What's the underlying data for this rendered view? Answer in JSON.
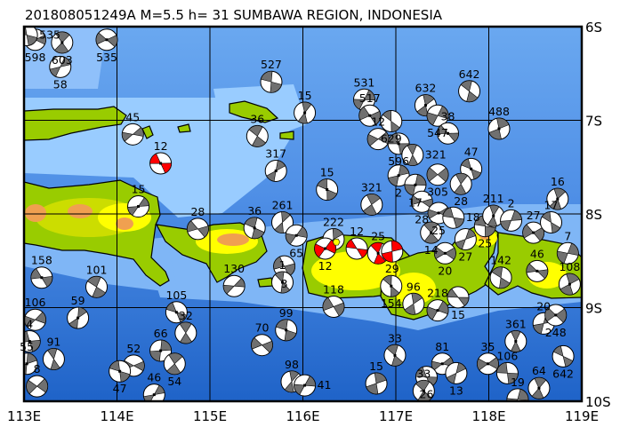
{
  "title": "201808051249A M=5.5 h= 31 SUMBAWA REGION, INDONESIA",
  "map": {
    "lon_range": [
      113,
      119
    ],
    "lat_range": [
      -10,
      -6
    ],
    "grid": true,
    "lon_ticks": [
      {
        "value": 113,
        "label": "113E"
      },
      {
        "value": 114,
        "label": "114E"
      },
      {
        "value": 115,
        "label": "115E"
      },
      {
        "value": 116,
        "label": "116E"
      },
      {
        "value": 117,
        "label": "117E"
      },
      {
        "value": 118,
        "label": "118E"
      },
      {
        "value": 119,
        "label": "119E"
      }
    ],
    "lat_ticks": [
      {
        "value": -6,
        "label": "6S"
      },
      {
        "value": -7,
        "label": "7S"
      },
      {
        "value": -8,
        "label": "8S"
      },
      {
        "value": -9,
        "label": "9S"
      },
      {
        "value": -10,
        "label": "10S"
      }
    ],
    "colors": {
      "deep_sea": "#1f63c8",
      "mid_sea": "#4f8fe6",
      "shelf": "#99ccff",
      "lowland": "#99cc00",
      "upland": "#ffff00",
      "highland": "#f0a050",
      "mechanism_fill": "#707070",
      "target_mechanism_fill": "#ff0000",
      "epicenter": "#ffff00"
    },
    "epicenter": {
      "lon": 116.36,
      "lat": -8.3
    }
  },
  "events": [
    {
      "label": "598",
      "lon": 113.12,
      "lat": -6.14,
      "highlight": false
    },
    {
      "label": "535",
      "lon": 113.03,
      "lat": -6.09,
      "highlight": false
    },
    {
      "label": "603",
      "lon": 113.41,
      "lat": -6.17,
      "highlight": false
    },
    {
      "label": "58",
      "lon": 113.39,
      "lat": -6.43,
      "highlight": false
    },
    {
      "label": "535",
      "lon": 113.89,
      "lat": -6.14,
      "highlight": false
    },
    {
      "label": "527",
      "lon": 115.66,
      "lat": -6.59,
      "highlight": false
    },
    {
      "label": "15",
      "lon": 116.02,
      "lat": -6.92,
      "highlight": false
    },
    {
      "label": "531",
      "lon": 116.66,
      "lat": -6.78,
      "highlight": false
    },
    {
      "label": "517",
      "lon": 116.72,
      "lat": -6.95,
      "highlight": false
    },
    {
      "label": "629",
      "lon": 116.95,
      "lat": -7.01,
      "highlight": false
    },
    {
      "label": "632",
      "lon": 117.32,
      "lat": -6.84,
      "highlight": false
    },
    {
      "label": "547",
      "lon": 117.45,
      "lat": -6.95,
      "highlight": false
    },
    {
      "label": "38",
      "lon": 117.56,
      "lat": -7.14,
      "highlight": false
    },
    {
      "label": "642",
      "lon": 117.79,
      "lat": -6.69,
      "highlight": false
    },
    {
      "label": "488",
      "lon": 118.11,
      "lat": -7.09,
      "highlight": false
    },
    {
      "label": "45",
      "lon": 114.17,
      "lat": -7.15,
      "highlight": false
    },
    {
      "label": "12",
      "lon": 114.47,
      "lat": -7.46,
      "highlight": true
    },
    {
      "label": "36",
      "lon": 115.51,
      "lat": -7.17,
      "highlight": false
    },
    {
      "label": "317",
      "lon": 115.71,
      "lat": -7.54,
      "highlight": false
    },
    {
      "label": "12",
      "lon": 116.81,
      "lat": -7.2,
      "highlight": false
    },
    {
      "label": "596",
      "lon": 117.03,
      "lat": -7.25,
      "highlight": false
    },
    {
      "label": "321",
      "lon": 117.18,
      "lat": -7.37,
      "highlight": false
    },
    {
      "label": "2",
      "lon": 117.03,
      "lat": -7.59,
      "highlight": false
    },
    {
      "label": "305",
      "lon": 117.45,
      "lat": -7.58,
      "highlight": false
    },
    {
      "label": "47",
      "lon": 117.81,
      "lat": -7.52,
      "highlight": false
    },
    {
      "label": "28",
      "lon": 117.7,
      "lat": -7.68,
      "highlight": false
    },
    {
      "label": "17",
      "lon": 117.21,
      "lat": -7.69,
      "highlight": false
    },
    {
      "label": "28",
      "lon": 117.28,
      "lat": -7.87,
      "highlight": false
    },
    {
      "label": "15",
      "lon": 116.26,
      "lat": -7.74,
      "highlight": false
    },
    {
      "label": "321",
      "lon": 116.74,
      "lat": -7.9,
      "highlight": false
    },
    {
      "label": "15",
      "lon": 114.23,
      "lat": -7.92,
      "highlight": false
    },
    {
      "label": "28",
      "lon": 114.87,
      "lat": -8.16,
      "highlight": false
    },
    {
      "label": "36",
      "lon": 115.48,
      "lat": -8.15,
      "highlight": false
    },
    {
      "label": "261",
      "lon": 115.78,
      "lat": -8.09,
      "highlight": false
    },
    {
      "label": "65",
      "lon": 115.93,
      "lat": -8.23,
      "highlight": false
    },
    {
      "label": "3",
      "lon": 115.8,
      "lat": -8.56,
      "highlight": false
    },
    {
      "label": "1",
      "lon": 115.78,
      "lat": -8.73,
      "highlight": false
    },
    {
      "label": "222",
      "lon": 116.33,
      "lat": -8.27,
      "highlight": false
    },
    {
      "label": "12",
      "lon": 116.24,
      "lat": -8.37,
      "highlight": true
    },
    {
      "label": "12",
      "lon": 116.58,
      "lat": -8.37,
      "highlight": true
    },
    {
      "label": "25",
      "lon": 116.81,
      "lat": -8.42,
      "highlight": true
    },
    {
      "label": "29",
      "lon": 116.96,
      "lat": -8.4,
      "highlight": true
    },
    {
      "label": "25",
      "lon": 117.46,
      "lat": -7.99,
      "highlight": false
    },
    {
      "label": "18",
      "lon": 117.62,
      "lat": -8.04,
      "highlight": false
    },
    {
      "label": "14",
      "lon": 117.38,
      "lat": -8.2,
      "highlight": false
    },
    {
      "label": "27",
      "lon": 117.75,
      "lat": -8.27,
      "highlight": false
    },
    {
      "label": "20",
      "lon": 117.53,
      "lat": -8.42,
      "highlight": false
    },
    {
      "label": "25",
      "lon": 117.96,
      "lat": -8.13,
      "highlight": false
    },
    {
      "label": "211",
      "lon": 118.05,
      "lat": -8.02,
      "highlight": false
    },
    {
      "label": "2",
      "lon": 118.24,
      "lat": -8.07,
      "highlight": false
    },
    {
      "label": "27",
      "lon": 118.48,
      "lat": -8.2,
      "highlight": false
    },
    {
      "label": "17",
      "lon": 118.67,
      "lat": -8.09,
      "highlight": false
    },
    {
      "label": "16",
      "lon": 118.74,
      "lat": -7.84,
      "highlight": false
    },
    {
      "label": "7",
      "lon": 118.85,
      "lat": -8.42,
      "highlight": false
    },
    {
      "label": "46",
      "lon": 118.52,
      "lat": -8.61,
      "highlight": false
    },
    {
      "label": "142",
      "lon": 118.13,
      "lat": -8.68,
      "highlight": false
    },
    {
      "label": "108",
      "lon": 118.87,
      "lat": -8.75,
      "highlight": false
    },
    {
      "label": "130",
      "lon": 115.26,
      "lat": -8.77,
      "highlight": false
    },
    {
      "label": "158",
      "lon": 113.19,
      "lat": -8.68,
      "highlight": false
    },
    {
      "label": "101",
      "lon": 113.78,
      "lat": -8.78,
      "highlight": false
    },
    {
      "label": "59",
      "lon": 113.58,
      "lat": -9.11,
      "highlight": false
    },
    {
      "label": "106",
      "lon": 113.12,
      "lat": -9.13,
      "highlight": false
    },
    {
      "label": "4",
      "lon": 113.06,
      "lat": -9.36,
      "highlight": false
    },
    {
      "label": "91",
      "lon": 113.32,
      "lat": -9.55,
      "highlight": false
    },
    {
      "label": "55",
      "lon": 113.03,
      "lat": -9.6,
      "highlight": false
    },
    {
      "label": "8",
      "lon": 113.14,
      "lat": -9.84,
      "highlight": false
    },
    {
      "label": "105",
      "lon": 114.64,
      "lat": -9.05,
      "highlight": false
    },
    {
      "label": "32",
      "lon": 114.74,
      "lat": -9.27,
      "highlight": false
    },
    {
      "label": "66",
      "lon": 114.47,
      "lat": -9.46,
      "highlight": false
    },
    {
      "label": "52",
      "lon": 114.18,
      "lat": -9.62,
      "highlight": false
    },
    {
      "label": "47",
      "lon": 114.03,
      "lat": -9.68,
      "highlight": false
    },
    {
      "label": "54",
      "lon": 114.62,
      "lat": -9.6,
      "highlight": false
    },
    {
      "label": "46",
      "lon": 114.4,
      "lat": -9.93,
      "highlight": false
    },
    {
      "label": "70",
      "lon": 115.56,
      "lat": -9.4,
      "highlight": false
    },
    {
      "label": "99",
      "lon": 115.82,
      "lat": -9.24,
      "highlight": false
    },
    {
      "label": "98",
      "lon": 115.88,
      "lat": -9.79,
      "highlight": false
    },
    {
      "label": "41",
      "lon": 116.02,
      "lat": -9.83,
      "highlight": false
    },
    {
      "label": "118",
      "lon": 116.33,
      "lat": -8.99,
      "highlight": false
    },
    {
      "label": "154",
      "lon": 116.95,
      "lat": -8.77,
      "highlight": false
    },
    {
      "label": "96",
      "lon": 117.19,
      "lat": -8.96,
      "highlight": false
    },
    {
      "label": "218",
      "lon": 117.45,
      "lat": -9.03,
      "highlight": false
    },
    {
      "label": "15",
      "lon": 117.67,
      "lat": -8.89,
      "highlight": false
    },
    {
      "label": "33",
      "lon": 116.99,
      "lat": -9.51,
      "highlight": false
    },
    {
      "label": "15",
      "lon": 116.79,
      "lat": -9.81,
      "highlight": false
    },
    {
      "label": "81",
      "lon": 117.5,
      "lat": -9.6,
      "highlight": false
    },
    {
      "label": "26",
      "lon": 117.33,
      "lat": -9.74,
      "highlight": false
    },
    {
      "label": "33",
      "lon": 117.3,
      "lat": -9.89,
      "highlight": false
    },
    {
      "label": "13",
      "lon": 117.65,
      "lat": -9.7,
      "highlight": false
    },
    {
      "label": "35",
      "lon": 117.99,
      "lat": -9.6,
      "highlight": false
    },
    {
      "label": "106",
      "lon": 118.2,
      "lat": -9.7,
      "highlight": false
    },
    {
      "label": "361",
      "lon": 118.29,
      "lat": -9.36,
      "highlight": false
    },
    {
      "label": "20",
      "lon": 118.59,
      "lat": -9.17,
      "highlight": false
    },
    {
      "label": "248",
      "lon": 118.72,
      "lat": -9.08,
      "highlight": false
    },
    {
      "label": "642",
      "lon": 118.8,
      "lat": -9.52,
      "highlight": false
    },
    {
      "label": "64",
      "lon": 118.54,
      "lat": -9.86,
      "highlight": false
    },
    {
      "label": "19",
      "lon": 118.31,
      "lat": -9.98,
      "highlight": false
    }
  ]
}
